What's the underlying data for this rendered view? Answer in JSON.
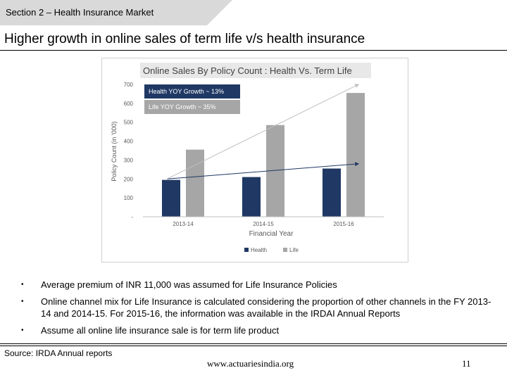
{
  "header": {
    "section_label": "Section 2 – Health Insurance Market",
    "title": "Higher growth in online sales of term life v/s health insurance"
  },
  "chart_data": {
    "type": "bar",
    "title": "Online Sales By Policy Count : Health Vs. Term Life",
    "xlabel": "Financial Year",
    "ylabel": "Policy Count (in '000)",
    "categories": [
      "2013-14",
      "2014-15",
      "2015-16"
    ],
    "series": [
      {
        "name": "Health",
        "values": [
          195,
          210,
          255
        ],
        "color": "#1f3864"
      },
      {
        "name": "Life",
        "values": [
          355,
          485,
          655
        ],
        "color": "#a6a6a6"
      }
    ],
    "ylim": [
      0,
      700
    ],
    "yticks": [
      "-",
      "100",
      "200",
      "300",
      "400",
      "500",
      "600",
      "700"
    ],
    "annotations": [
      {
        "text": "Health YOY Growth ~ 13%",
        "color": "#1f3864"
      },
      {
        "text": "Life YOY Growth ~ 35%",
        "color": "#a6a6a6"
      }
    ],
    "trend_lines": [
      {
        "series": "Health",
        "from": 200,
        "to": 280,
        "color": "#1f3864"
      },
      {
        "series": "Life",
        "from": 200,
        "to": 700,
        "color": "#bfbfbf"
      }
    ],
    "legend_position": "bottom"
  },
  "bullets": [
    "Average premium of INR 11,000 was assumed for Life Insurance Policies",
    "Online channel mix for Life Insurance is calculated considering the proportion of other channels in the FY 2013-14 and 2014-15. For 2015-16, the information was available in the IRDAI Annual Reports",
    "Assume all online life insurance sale is for term life product"
  ],
  "bullet_symbol": "•",
  "footer": {
    "source": "Source: IRDA Annual reports",
    "website": "www.actuariesindia.org",
    "page_number": "11"
  }
}
